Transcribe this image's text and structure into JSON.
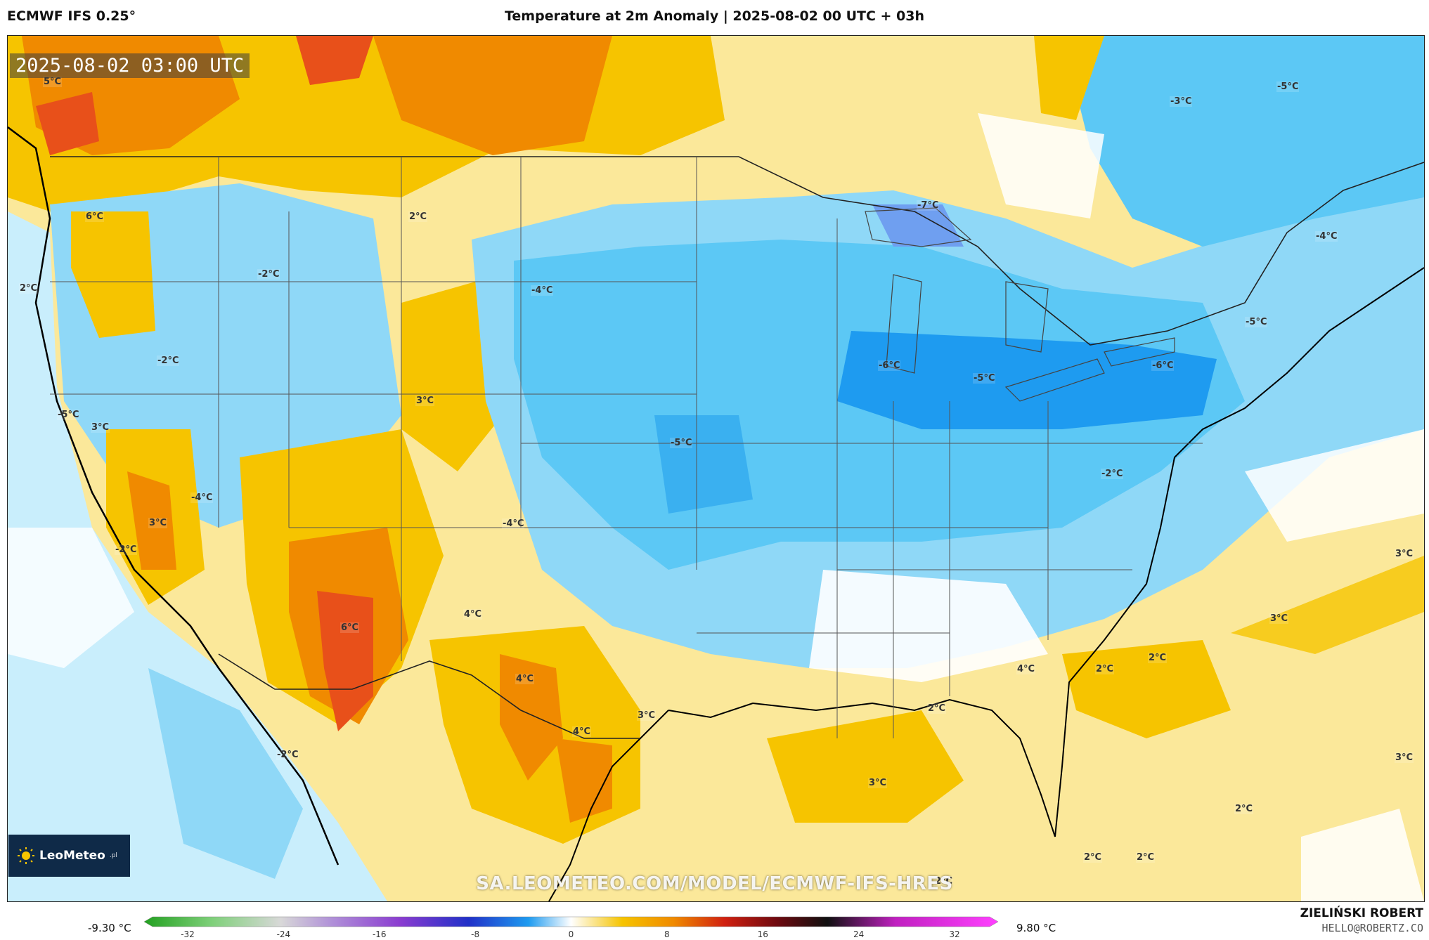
{
  "header": {
    "model": "ECMWF IFS 0.25°",
    "title": "Temperature at 2m Anomaly | 2025-08-02 00 UTC + 03h"
  },
  "map": {
    "valid_time": "2025-08-02 03:00 UTC",
    "watermark": "SA.LEOMETEO.COM/MODEL/ECMWF-IFS-HRES",
    "labels": [
      {
        "text": "5°C",
        "pos": [
          60,
          108
        ]
      },
      {
        "text": "6°C",
        "pos": [
          120,
          300
        ]
      },
      {
        "text": "2°C",
        "pos": [
          26,
          402
        ]
      },
      {
        "text": "-2°C",
        "pos": [
          365,
          382
        ]
      },
      {
        "text": "2°C",
        "pos": [
          580,
          300
        ]
      },
      {
        "text": "-2°C",
        "pos": [
          222,
          505
        ]
      },
      {
        "text": "-5°C",
        "pos": [
          80,
          582
        ]
      },
      {
        "text": "3°C",
        "pos": [
          128,
          600
        ]
      },
      {
        "text": "3°C",
        "pos": [
          590,
          562
        ]
      },
      {
        "text": "-4°C",
        "pos": [
          270,
          700
        ]
      },
      {
        "text": "3°C",
        "pos": [
          210,
          736
        ]
      },
      {
        "text": "-2°C",
        "pos": [
          162,
          774
        ]
      },
      {
        "text": "-4°C",
        "pos": [
          754,
          405
        ]
      },
      {
        "text": "-4°C",
        "pos": [
          713,
          737
        ]
      },
      {
        "text": "6°C",
        "pos": [
          483,
          885
        ]
      },
      {
        "text": "4°C",
        "pos": [
          658,
          866
        ]
      },
      {
        "text": "4°C",
        "pos": [
          732,
          958
        ]
      },
      {
        "text": "3°C",
        "pos": [
          905,
          1010
        ]
      },
      {
        "text": "4°C",
        "pos": [
          813,
          1033
        ]
      },
      {
        "text": "-2°C",
        "pos": [
          392,
          1066
        ]
      },
      {
        "text": "-5°C",
        "pos": [
          952,
          622
        ]
      },
      {
        "text": "-7°C",
        "pos": [
          1303,
          284
        ]
      },
      {
        "text": "-6°C",
        "pos": [
          1248,
          512
        ]
      },
      {
        "text": "-5°C",
        "pos": [
          1383,
          530
        ]
      },
      {
        "text": "-6°C",
        "pos": [
          1637,
          512
        ]
      },
      {
        "text": "-3°C",
        "pos": [
          1663,
          136
        ]
      },
      {
        "text": "-5°C",
        "pos": [
          1815,
          115
        ]
      },
      {
        "text": "-4°C",
        "pos": [
          1870,
          328
        ]
      },
      {
        "text": "-5°C",
        "pos": [
          1770,
          450
        ]
      },
      {
        "text": "-2°C",
        "pos": [
          1565,
          666
        ]
      },
      {
        "text": "4°C",
        "pos": [
          1445,
          944
        ]
      },
      {
        "text": "2°C",
        "pos": [
          1557,
          944
        ]
      },
      {
        "text": "2°C",
        "pos": [
          1632,
          928
        ]
      },
      {
        "text": "3°C",
        "pos": [
          1805,
          872
        ]
      },
      {
        "text": "3°C",
        "pos": [
          1983,
          780
        ]
      },
      {
        "text": "2°C",
        "pos": [
          1318,
          1000
        ]
      },
      {
        "text": "3°C",
        "pos": [
          1234,
          1106
        ]
      },
      {
        "text": "3°C",
        "pos": [
          1983,
          1070
        ]
      },
      {
        "text": "2°C",
        "pos": [
          1755,
          1143
        ]
      },
      {
        "text": "2°C",
        "pos": [
          1540,
          1212
        ]
      },
      {
        "text": "2°C",
        "pos": [
          1615,
          1212
        ]
      },
      {
        "text": "2°C",
        "pos": [
          1328,
          1246
        ]
      }
    ]
  },
  "logo": {
    "name": "LeoMeteo",
    "suffix": ".pl"
  },
  "colorbar": {
    "min_label": "-9.30 °C",
    "max_label": "9.80 °C",
    "ticks": [
      "-32",
      "-24",
      "-16",
      "-8",
      "0",
      "8",
      "16",
      "24",
      "32"
    ]
  },
  "footer": {
    "author": "ZIELIŃSKI ROBERT",
    "email": "HELLO@ROBERTZ.CO"
  },
  "colors": {
    "cold_strong": "#1e9bf0",
    "cold": "#5cc8f5",
    "cold_light": "#a8e4fa",
    "neutral": "#ffffff",
    "warm_light": "#fbe89a",
    "warm": "#f6c400",
    "hot": "#f08a00",
    "hot_strong": "#e8501a"
  }
}
